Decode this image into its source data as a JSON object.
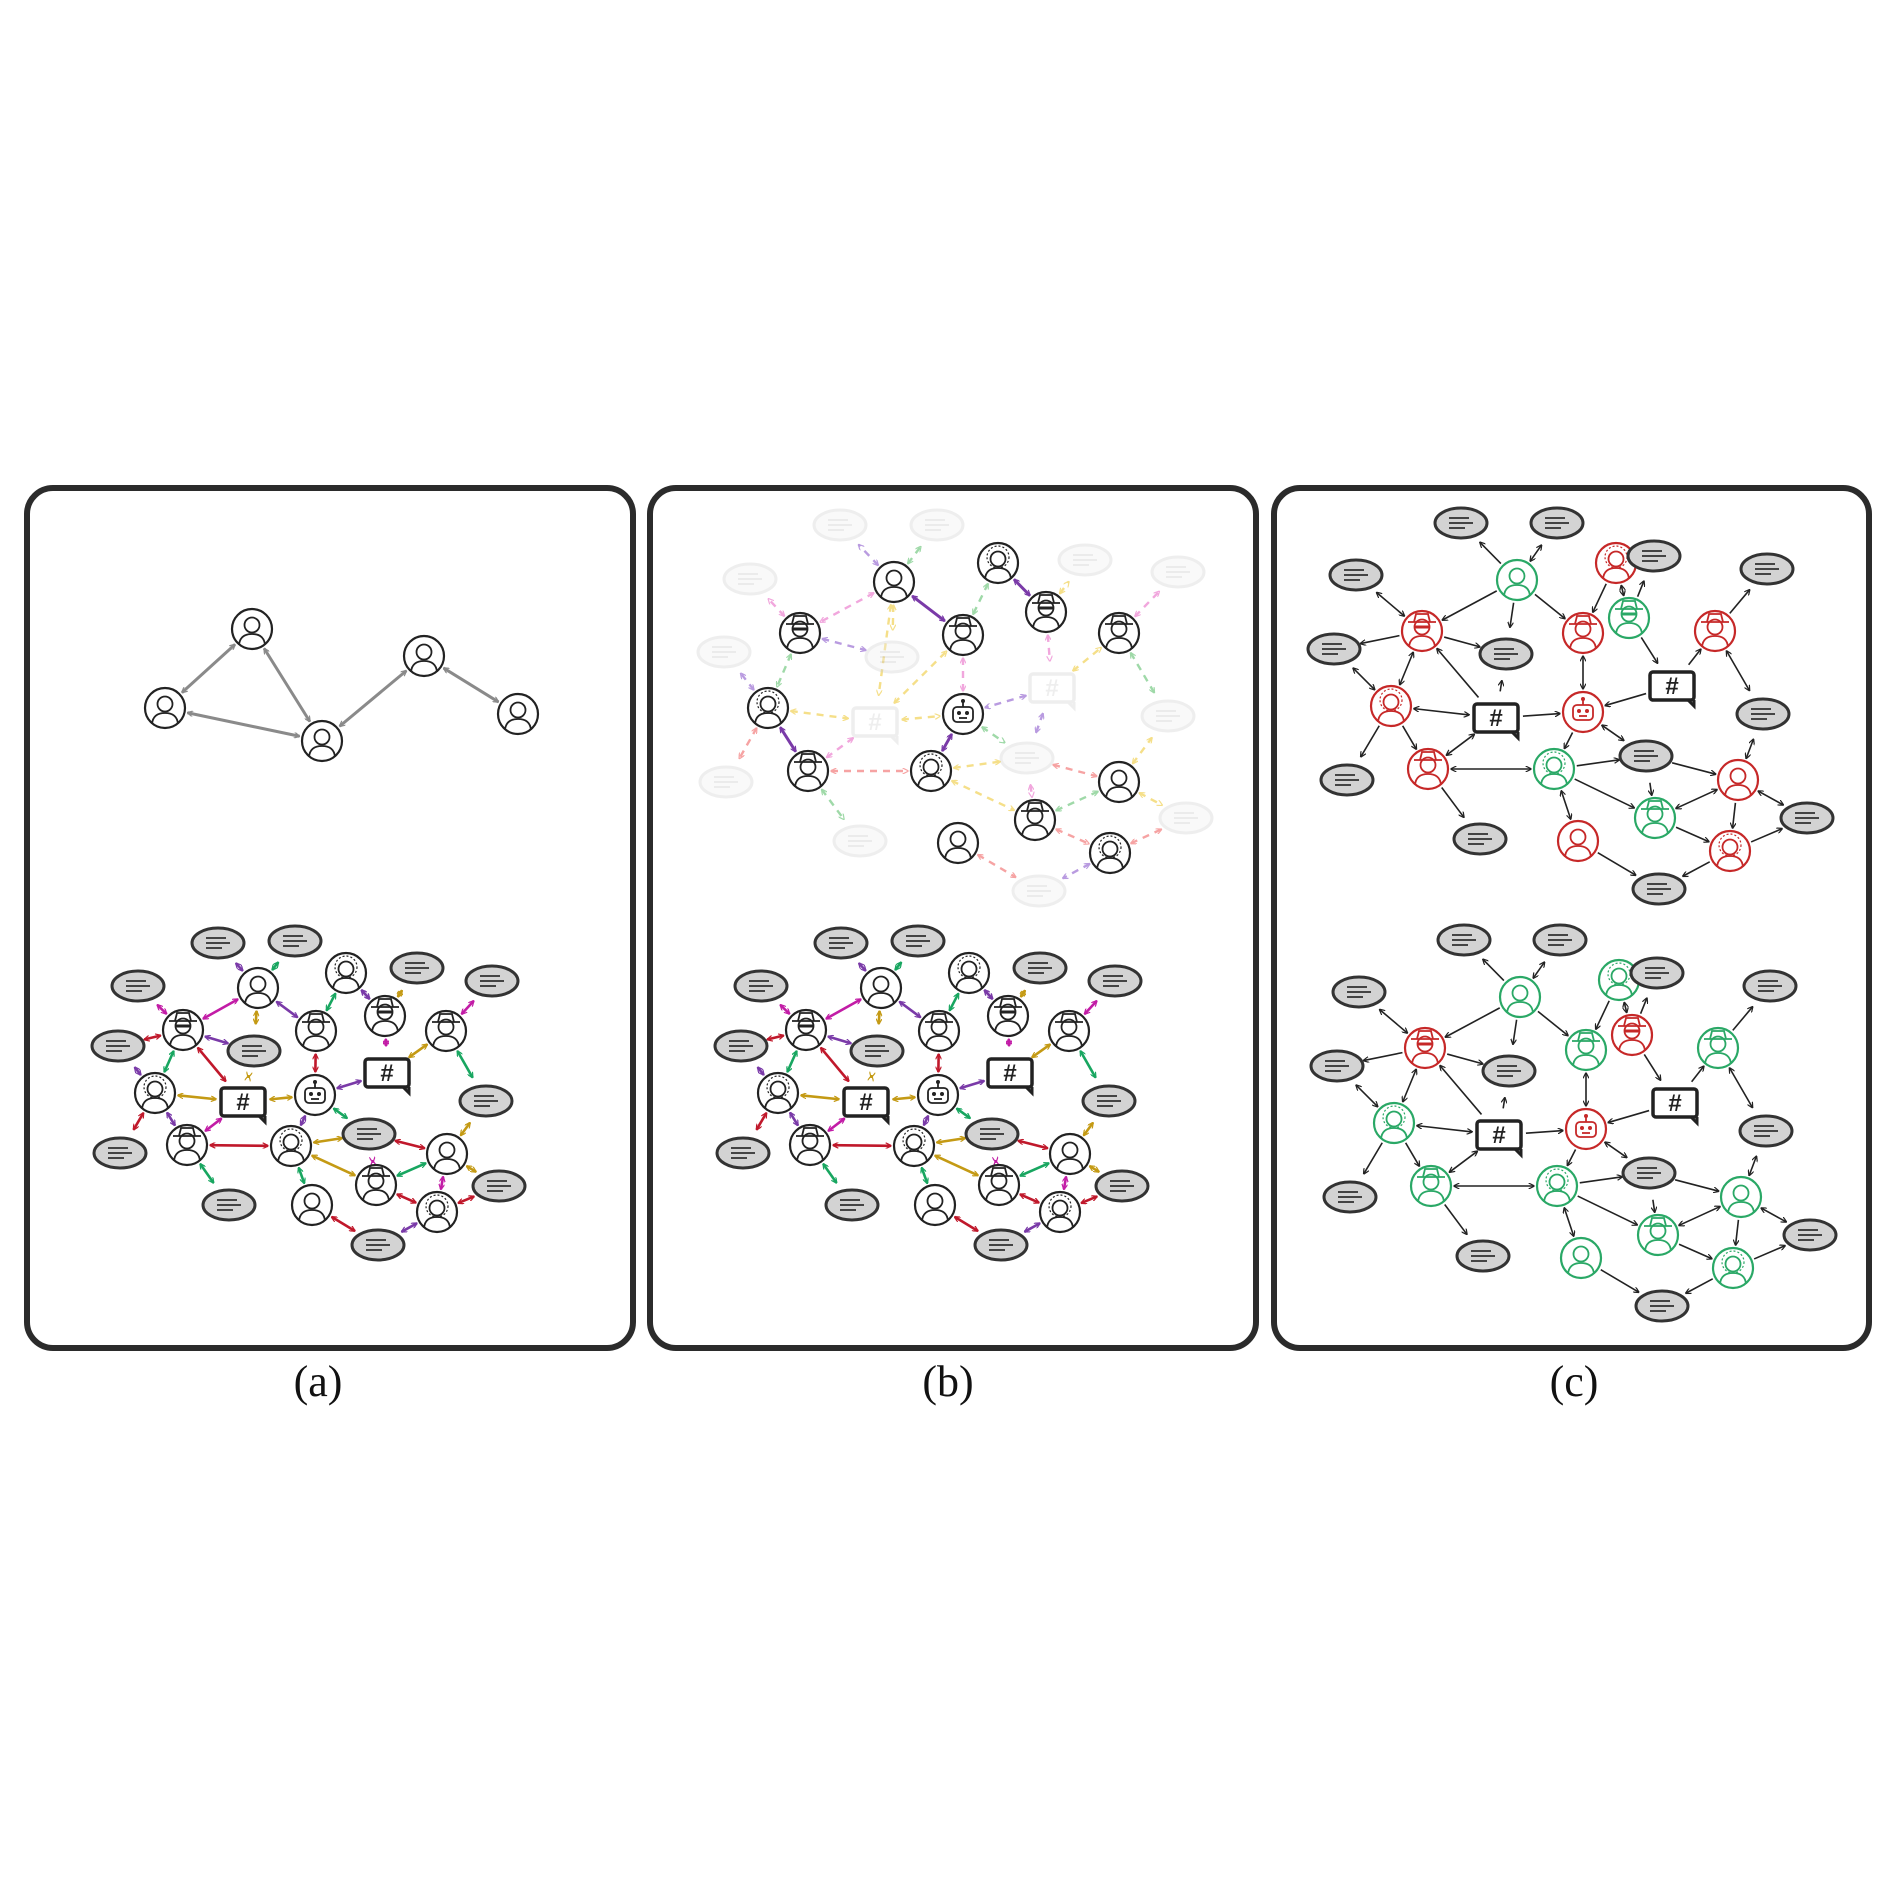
{
  "figure": {
    "panels": [
      {
        "id": "a",
        "caption": "(a)"
      },
      {
        "id": "b",
        "caption": "(b)"
      },
      {
        "id": "c",
        "caption": "(c)"
      }
    ],
    "hashtag_symbol": "#",
    "icons": {
      "user": "user-icon",
      "spy": "spy-icon",
      "hat_user": "hat-user-icon",
      "curly_user": "curly-hair-user-icon",
      "bot": "robot-icon",
      "hashtag": "hashtag-icon",
      "post": "post-icon"
    },
    "colors": {
      "frame": "#2b2b2b",
      "gray_edge": "#8a8a8a",
      "red": "#c0182b",
      "purple": "#7a3aa8",
      "green": "#18a660",
      "gold": "#c49a14",
      "magenta": "#c21ca6",
      "post_fill": "#d3d3d3",
      "benign": "#2aa866",
      "malicious": "#c62828"
    }
  }
}
